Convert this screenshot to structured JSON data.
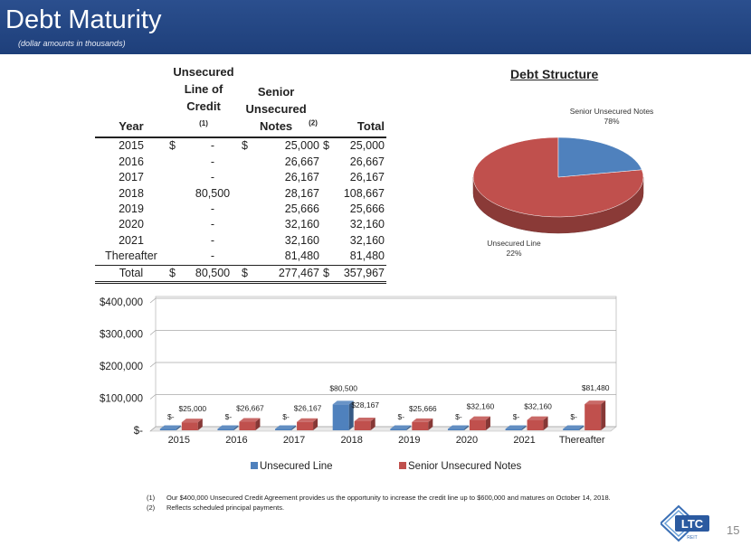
{
  "header": {
    "title": "Debt Maturity",
    "subtitle": "(dollar amounts in thousands)"
  },
  "table": {
    "headers": {
      "year": "Year",
      "unsecured": "Unsecured Line of Credit",
      "unsecured_note": "(1)",
      "senior": "Senior Unsecured Notes",
      "senior_note": "(2)",
      "total": "Total"
    },
    "rows": [
      {
        "year": "2015",
        "usym": "$",
        "u": "-",
        "ssym": "$",
        "s": "25,000",
        "tsym": "$",
        "t": "25,000"
      },
      {
        "year": "2016",
        "usym": "",
        "u": "-",
        "ssym": "",
        "s": "26,667",
        "tsym": "",
        "t": "26,667"
      },
      {
        "year": "2017",
        "usym": "",
        "u": "-",
        "ssym": "",
        "s": "26,167",
        "tsym": "",
        "t": "26,167"
      },
      {
        "year": "2018",
        "usym": "",
        "u": "80,500",
        "ssym": "",
        "s": "28,167",
        "tsym": "",
        "t": "108,667"
      },
      {
        "year": "2019",
        "usym": "",
        "u": "-",
        "ssym": "",
        "s": "25,666",
        "tsym": "",
        "t": "25,666"
      },
      {
        "year": "2020",
        "usym": "",
        "u": "-",
        "ssym": "",
        "s": "32,160",
        "tsym": "",
        "t": "32,160"
      },
      {
        "year": "2021",
        "usym": "",
        "u": "-",
        "ssym": "",
        "s": "32,160",
        "tsym": "",
        "t": "32,160"
      },
      {
        "year": "Thereafter",
        "usym": "",
        "u": "-",
        "ssym": "",
        "s": "81,480",
        "tsym": "",
        "t": "81,480"
      }
    ],
    "total": {
      "year": "Total",
      "usym": "$",
      "u": "80,500",
      "ssym": "$",
      "s": "277,467",
      "tsym": "$",
      "t": "357,967"
    }
  },
  "pie": {
    "title": "Debt Structure",
    "slices": [
      {
        "label": "Senior Unsecured Notes",
        "value": 78,
        "pct": "78%",
        "color": "#c0504d"
      },
      {
        "label": "Unsecured Line",
        "value": 22,
        "pct": "22%",
        "color": "#4f81bd"
      }
    ]
  },
  "chart_data": [
    {
      "type": "pie",
      "title": "Debt Structure",
      "labels": [
        "Senior Unsecured Notes",
        "Unsecured Line"
      ],
      "values": [
        78,
        22
      ]
    },
    {
      "type": "bar",
      "categories": [
        "2015",
        "2016",
        "2017",
        "2018",
        "2019",
        "2020",
        "2021",
        "Thereafter"
      ],
      "series": [
        {
          "name": "Unsecured Line",
          "color": "#4f81bd",
          "values": [
            0,
            0,
            0,
            80500,
            0,
            0,
            0,
            0
          ],
          "labels": [
            "$-",
            "$-",
            "$-",
            "$80,500",
            "$-",
            "$-",
            "$-",
            "$-"
          ]
        },
        {
          "name": "Senior Unsecured Notes",
          "color": "#c0504d",
          "values": [
            25000,
            26667,
            26167,
            28167,
            25666,
            32160,
            32160,
            81480
          ],
          "labels": [
            "$25,000",
            "$26,667",
            "$26,167",
            "$28,167",
            "$25,666",
            "$32,160",
            "$32,160",
            "$81,480"
          ]
        }
      ],
      "ylim": [
        0,
        400000
      ],
      "yticks": [
        0,
        100000,
        200000,
        300000,
        400000
      ],
      "ytick_labels": [
        "$-",
        "$100,000",
        "$200,000",
        "$300,000",
        "$400,000"
      ],
      "grid": true,
      "legend": "bottom"
    }
  ],
  "footnotes": [
    {
      "num": "(1)",
      "text": "Our $400,000 Unsecured Credit Agreement provides us the opportunity to increase the credit line up to $600,000 and matures on October 14, 2018."
    },
    {
      "num": "(2)",
      "text": "Reflects scheduled principal payments."
    }
  ],
  "logo": {
    "text": "LTC",
    "sub": "REIT"
  },
  "page_number": "15"
}
